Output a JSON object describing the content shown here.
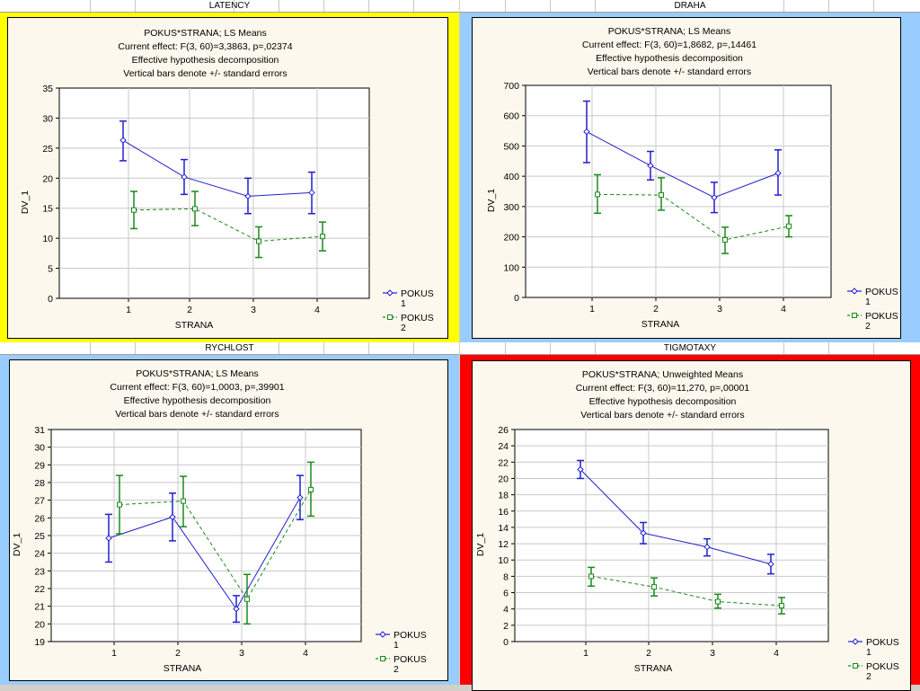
{
  "colors": {
    "yellow": "#ffff00",
    "blue": "#99ccff",
    "red": "#ff0000",
    "series1": "#2020d0",
    "series2": "#1a8a1a"
  },
  "charts": [
    {
      "header": "LATENCY",
      "frame_color": "#ffff00",
      "title_lines": [
        "POKUS*STRANA; LS Means",
        "Current effect: F(3, 60)=3,3863, p=,02374",
        "Effective hypothesis decomposition",
        "Vertical bars denote +/- standard errors"
      ],
      "legend": [
        {
          "name_line1": "POKUS",
          "name_line2": "1"
        },
        {
          "name_line1": "POKUS",
          "name_line2": "2"
        }
      ]
    },
    {
      "header": "DRAHA",
      "frame_color": "#99ccff",
      "title_lines": [
        "POKUS*STRANA; LS Means",
        "Current effect: F(3, 60)=1,8682, p=,14461",
        "Effective hypothesis decomposition",
        "Vertical bars denote +/- standard errors"
      ],
      "legend": [
        {
          "name_line1": "POKUS",
          "name_line2": "1"
        },
        {
          "name_line1": "POKUS",
          "name_line2": "2"
        }
      ]
    },
    {
      "header": "RYCHLOST",
      "frame_color": "#99ccff",
      "title_lines": [
        "POKUS*STRANA; LS Means",
        "Current effect: F(3, 60)=1,0003, p=,39901",
        "Effective hypothesis decomposition",
        "Vertical bars denote +/- standard errors"
      ],
      "legend": [
        {
          "name_line1": "POKUS",
          "name_line2": "1"
        },
        {
          "name_line1": "POKUS",
          "name_line2": "2"
        }
      ]
    },
    {
      "header": "TIGMOTAXY",
      "frame_color": "#ff0000",
      "title_lines": [
        "POKUS*STRANA; Unweighted Means",
        "Current effect: F(3, 60)=11,270, p=,00001",
        "Effective hypothesis decomposition",
        "Vertical bars denote +/- standard errors"
      ],
      "legend": [
        {
          "name_line1": "POKUS",
          "name_line2": "1"
        },
        {
          "name_line1": "POKUS",
          "name_line2": "2"
        }
      ]
    }
  ],
  "chart_data": [
    {
      "type": "line",
      "title": "POKUS*STRANA; LS Means",
      "xlabel": "STRANA",
      "ylabel": "DV_1",
      "categories": [
        "1",
        "2",
        "3",
        "4"
      ],
      "ylim": [
        0,
        35
      ],
      "yticks": [
        "0",
        "5",
        "10",
        "15",
        "20",
        "25",
        "30",
        "35"
      ],
      "grid": true,
      "series": [
        {
          "name": "POKUS 1",
          "values": [
            26.3,
            20.2,
            17.0,
            17.6
          ],
          "lower": [
            22.9,
            17.3,
            14.1,
            14.1
          ],
          "upper": [
            29.5,
            23.1,
            20.0,
            21.0
          ]
        },
        {
          "name": "POKUS 2",
          "values": [
            14.7,
            14.9,
            9.5,
            10.3
          ],
          "lower": [
            11.6,
            12.1,
            6.8,
            7.9
          ],
          "upper": [
            17.8,
            17.8,
            11.9,
            12.7
          ]
        }
      ]
    },
    {
      "type": "line",
      "title": "POKUS*STRANA; LS Means",
      "xlabel": "STRANA",
      "ylabel": "DV_1",
      "categories": [
        "1",
        "2",
        "3",
        "4"
      ],
      "ylim": [
        0,
        700
      ],
      "yticks": [
        "0",
        "100",
        "200",
        "300",
        "400",
        "500",
        "600",
        "700"
      ],
      "grid": true,
      "series": [
        {
          "name": "POKUS 1",
          "values": [
            547,
            435,
            330,
            410
          ],
          "lower": [
            445,
            388,
            280,
            338
          ],
          "upper": [
            648,
            482,
            380,
            487
          ]
        },
        {
          "name": "POKUS 2",
          "values": [
            340,
            338,
            190,
            235
          ],
          "lower": [
            278,
            288,
            145,
            200
          ],
          "upper": [
            405,
            395,
            232,
            270
          ]
        }
      ]
    },
    {
      "type": "line",
      "title": "POKUS*STRANA; LS Means",
      "xlabel": "STRANA",
      "ylabel": "DV_1",
      "categories": [
        "1",
        "2",
        "3",
        "4"
      ],
      "ylim": [
        19,
        31
      ],
      "yticks": [
        "19",
        "20",
        "21",
        "22",
        "23",
        "24",
        "25",
        "26",
        "27",
        "28",
        "29",
        "30",
        "31"
      ],
      "grid": true,
      "series": [
        {
          "name": "POKUS 1",
          "values": [
            24.85,
            26.05,
            20.85,
            27.15
          ],
          "lower": [
            23.5,
            24.7,
            20.1,
            25.9
          ],
          "upper": [
            26.2,
            27.4,
            21.6,
            28.4
          ]
        },
        {
          "name": "POKUS 2",
          "values": [
            26.75,
            26.95,
            21.4,
            27.6
          ],
          "lower": [
            25.1,
            25.5,
            20.0,
            26.1
          ],
          "upper": [
            28.4,
            28.35,
            22.8,
            29.15
          ]
        }
      ]
    },
    {
      "type": "line",
      "title": "POKUS*STRANA; Unweighted Means",
      "xlabel": "STRANA",
      "ylabel": "DV_1",
      "categories": [
        "1",
        "2",
        "3",
        "4"
      ],
      "ylim": [
        0,
        26
      ],
      "yticks": [
        "0",
        "2",
        "4",
        "6",
        "8",
        "10",
        "12",
        "14",
        "16",
        "18",
        "20",
        "22",
        "24",
        "26"
      ],
      "grid": true,
      "series": [
        {
          "name": "POKUS 1",
          "values": [
            21.1,
            13.3,
            11.6,
            9.5
          ],
          "lower": [
            20.0,
            12.0,
            10.5,
            8.3
          ],
          "upper": [
            22.2,
            14.6,
            12.6,
            10.7
          ]
        },
        {
          "name": "POKUS 2",
          "values": [
            8.0,
            6.7,
            4.9,
            4.4
          ],
          "lower": [
            6.8,
            5.6,
            4.1,
            3.4
          ],
          "upper": [
            9.1,
            7.8,
            5.8,
            5.4
          ]
        }
      ]
    }
  ]
}
